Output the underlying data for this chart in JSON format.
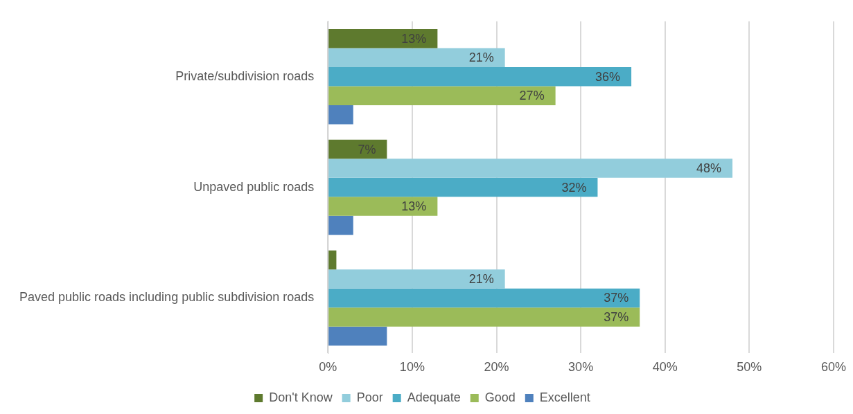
{
  "chart_data": {
    "type": "bar",
    "orientation": "horizontal",
    "categories": [
      "Private/subdivision roads",
      "Unpaved public roads",
      "Paved public roads including public subdivision roads"
    ],
    "series": [
      {
        "name": "Don't Know",
        "color": "#5e7a2e",
        "values": [
          13,
          7,
          1
        ],
        "value_labels": [
          "13%",
          "7%",
          null
        ]
      },
      {
        "name": "Poor",
        "color": "#92cddc",
        "values": [
          21,
          48,
          21
        ],
        "value_labels": [
          "21%",
          "48%",
          "21%"
        ]
      },
      {
        "name": "Adequate",
        "color": "#4bacc6",
        "values": [
          36,
          32,
          37
        ],
        "value_labels": [
          "36%",
          "32%",
          "37%"
        ]
      },
      {
        "name": "Good",
        "color": "#9bbb59",
        "values": [
          27,
          13,
          37
        ],
        "value_labels": [
          "27%",
          "13%",
          "37%"
        ]
      },
      {
        "name": "Excellent",
        "color": "#4f81bd",
        "values": [
          3,
          3,
          7
        ],
        "value_labels": [
          null,
          null,
          null
        ]
      }
    ],
    "xlim": [
      0,
      60
    ],
    "xticks": [
      {
        "value": 0,
        "label": "0%"
      },
      {
        "value": 10,
        "label": "10%"
      },
      {
        "value": 20,
        "label": "20%"
      },
      {
        "value": 30,
        "label": "30%"
      },
      {
        "value": 40,
        "label": "40%"
      },
      {
        "value": 50,
        "label": "50%"
      },
      {
        "value": 60,
        "label": "60%"
      }
    ],
    "grid": "x",
    "legend": "bottom"
  }
}
